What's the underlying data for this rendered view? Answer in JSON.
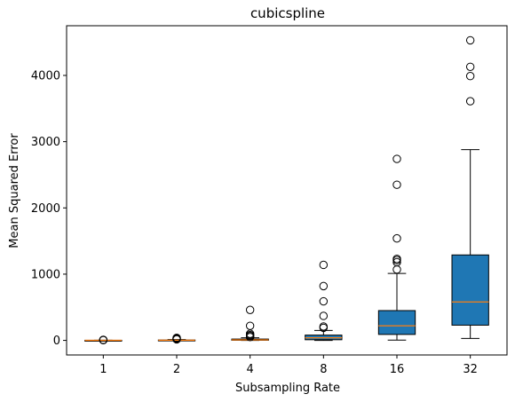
{
  "chart_data": {
    "type": "box",
    "title": "cubicspline",
    "xlabel": "Subsampling Rate",
    "ylabel": "Mean Squared Error",
    "categories": [
      "1",
      "2",
      "4",
      "8",
      "16",
      "32"
    ],
    "ylim": [
      -220,
      4750
    ],
    "yticks": [
      0,
      1000,
      2000,
      3000,
      4000
    ],
    "box_color": "#1f77b4",
    "median_color": "#ff7f0e",
    "boxes": [
      {
        "label": "1",
        "whisker_low": 0,
        "q1": 0,
        "median": 1,
        "q3": 2,
        "whisker_high": 3,
        "outliers": [
          4,
          6,
          8
        ]
      },
      {
        "label": "2",
        "whisker_low": 0,
        "q1": 1,
        "median": 3,
        "q3": 6,
        "whisker_high": 12,
        "outliers": [
          15,
          20,
          25,
          30,
          38
        ]
      },
      {
        "label": "4",
        "whisker_low": 0,
        "q1": 2,
        "median": 8,
        "q3": 20,
        "whisker_high": 40,
        "outliers": [
          50,
          65,
          80,
          100,
          220,
          460
        ]
      },
      {
        "label": "8",
        "whisker_low": 0,
        "q1": 10,
        "median": 40,
        "q3": 80,
        "whisker_high": 150,
        "outliers": [
          190,
          210,
          370,
          590,
          820,
          1140
        ]
      },
      {
        "label": "16",
        "whisker_low": 5,
        "q1": 90,
        "median": 220,
        "q3": 450,
        "whisker_high": 1010,
        "outliers": [
          1070,
          1180,
          1210,
          1230,
          1540,
          2350,
          2740
        ]
      },
      {
        "label": "32",
        "whisker_low": 30,
        "q1": 230,
        "median": 580,
        "q3": 1290,
        "whisker_high": 2880,
        "outliers": [
          3610,
          3990,
          4130,
          4530
        ]
      }
    ]
  }
}
